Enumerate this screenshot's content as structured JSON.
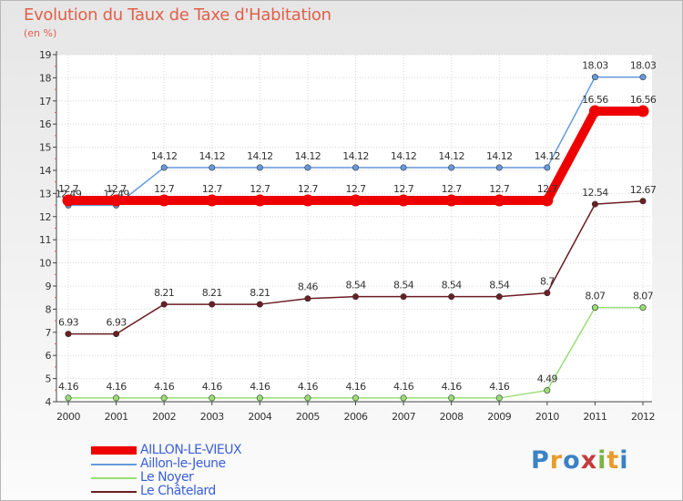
{
  "chart_data": {
    "type": "line",
    "title": "Evolution du Taux de Taxe d'Habitation",
    "ylabel": "(en %)",
    "xlabel": "",
    "ylim": [
      4,
      19
    ],
    "yticks": [
      "4",
      "5",
      "6",
      "7",
      "8",
      "9",
      "10",
      "11",
      "12",
      "13",
      "14",
      "15",
      "16",
      "17",
      "18",
      "19"
    ],
    "categories": [
      "2000",
      "2001",
      "2002",
      "2003",
      "2004",
      "2005",
      "2006",
      "2007",
      "2008",
      "2009",
      "2010",
      "2011",
      "2012"
    ],
    "series": [
      {
        "name": "Le Châtelard",
        "color": "#6b1e23",
        "values": [
          6.93,
          6.93,
          8.21,
          8.21,
          8.21,
          8.46,
          8.54,
          8.54,
          8.54,
          8.54,
          8.7,
          12.54,
          12.67
        ],
        "labels": [
          "6.93",
          "6.93",
          "8.21",
          "8.21",
          "8.21",
          "8.46",
          "8.54",
          "8.54",
          "8.54",
          "8.54",
          "8.7",
          "12.54",
          "12.67"
        ]
      },
      {
        "name": "Le Noyer",
        "color": "#99dd77",
        "values": [
          4.16,
          4.16,
          4.16,
          4.16,
          4.16,
          4.16,
          4.16,
          4.16,
          4.16,
          4.16,
          4.49,
          8.07,
          8.07
        ],
        "labels": [
          "4.16",
          "4.16",
          "4.16",
          "4.16",
          "4.16",
          "4.16",
          "4.16",
          "4.16",
          "4.16",
          "4.16",
          "4.49",
          "8.07",
          "8.07"
        ]
      },
      {
        "name": "Aillon-le-Jeune",
        "color": "#6699dd",
        "values": [
          12.49,
          12.49,
          14.12,
          14.12,
          14.12,
          14.12,
          14.12,
          14.12,
          14.12,
          14.12,
          14.12,
          18.03,
          18.03
        ],
        "labels": [
          "12.49",
          "12.49",
          "14.12",
          "14.12",
          "14.12",
          "14.12",
          "14.12",
          "14.12",
          "14.12",
          "14.12",
          "14.12",
          "18.03",
          "18.03"
        ]
      },
      {
        "name": "AILLON-LE-VIEUX",
        "color": "#ee0000",
        "values": [
          12.7,
          12.7,
          12.7,
          12.7,
          12.7,
          12.7,
          12.7,
          12.7,
          12.7,
          12.7,
          12.7,
          16.56,
          16.56
        ],
        "labels": [
          "12.7",
          "12.7",
          "12.7",
          "12.7",
          "12.7",
          "12.7",
          "12.7",
          "12.7",
          "12.7",
          "12.7",
          "12.7",
          "16.56",
          "16.56"
        ]
      }
    ],
    "legend_order": [
      "AILLON-LE-VIEUX",
      "Aillon-le-Jeune",
      "Le Noyer",
      "Le Châtelard"
    ]
  },
  "legend": {
    "items": [
      "AILLON-LE-VIEUX",
      "Aillon-le-Jeune",
      "Le Noyer",
      "Le Châtelard"
    ]
  },
  "logo": {
    "letters": [
      "P",
      "r",
      "o",
      "x",
      "i",
      "t",
      "i"
    ],
    "colors": [
      "#3b82c4",
      "#e89c2a",
      "#3b82c4",
      "#c43b3b",
      "#7cb342",
      "#e89c2a",
      "#3b82c4"
    ]
  }
}
